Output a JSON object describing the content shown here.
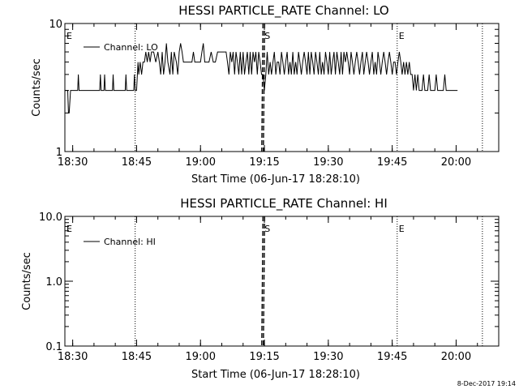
{
  "chart_data": [
    {
      "type": "line",
      "title": "HESSI PARTICLE_RATE Channel: LO",
      "xlabel": "Start Time (06-Jun-17 18:28:10)",
      "ylabel": "Counts/sec",
      "y_scale": "log",
      "ylim": [
        1,
        10
      ],
      "y_ticks": [
        "1",
        "10"
      ],
      "xlim": [
        "18:28:10",
        "20:10:00"
      ],
      "x_ticks": [
        "18:30",
        "18:45",
        "19:00",
        "19:15",
        "19:30",
        "19:45",
        "20:00"
      ],
      "legend": {
        "placement": "top-left",
        "entries": [
          "Channel: LO"
        ]
      },
      "markers": [
        {
          "label": "E",
          "time": "18:28:10",
          "style": "none"
        },
        {
          "label": "",
          "time": "18:44:40",
          "style": "dotted"
        },
        {
          "label": "S",
          "time": "19:14:40",
          "style": "dashed"
        },
        {
          "label": "E",
          "time": "19:46:10",
          "style": "dotted"
        },
        {
          "label": "",
          "time": "20:06:10",
          "style": "dotted"
        }
      ],
      "series": [
        {
          "name": "Channel: LO",
          "points": [
            [
              "18:28:10",
              3
            ],
            [
              "18:28:50",
              3
            ],
            [
              "18:29:00",
              2
            ],
            [
              "18:29:10",
              2
            ],
            [
              "18:29:30",
              3
            ],
            [
              "18:30:10",
              3
            ],
            [
              "18:30:20",
              3
            ],
            [
              "18:31:00",
              3
            ],
            [
              "18:31:10",
              3
            ],
            [
              "18:31:20",
              4
            ],
            [
              "18:31:30",
              3
            ],
            [
              "18:32:10",
              3
            ],
            [
              "18:32:30",
              3
            ],
            [
              "18:32:50",
              3
            ],
            [
              "18:36:20",
              3
            ],
            [
              "18:36:30",
              4
            ],
            [
              "18:36:40",
              3
            ],
            [
              "18:37:20",
              3
            ],
            [
              "18:37:30",
              4
            ],
            [
              "18:37:40",
              3
            ],
            [
              "18:39:20",
              3
            ],
            [
              "18:39:30",
              4
            ],
            [
              "18:39:40",
              3
            ],
            [
              "18:42:20",
              3
            ],
            [
              "18:42:30",
              4
            ],
            [
              "18:42:40",
              3
            ],
            [
              "18:44:20",
              3
            ],
            [
              "18:44:30",
              4
            ],
            [
              "18:44:40",
              3
            ],
            [
              "18:45:00",
              3
            ],
            [
              "18:45:20",
              5
            ],
            [
              "18:45:30",
              4
            ],
            [
              "18:45:50",
              5
            ],
            [
              "18:46:10",
              4
            ],
            [
              "18:46:30",
              5
            ],
            [
              "18:46:50",
              5
            ],
            [
              "18:47:10",
              6
            ],
            [
              "18:47:30",
              5
            ],
            [
              "18:47:50",
              6
            ],
            [
              "18:48:10",
              5
            ],
            [
              "18:48:30",
              6
            ],
            [
              "18:49:00",
              6
            ],
            [
              "18:49:30",
              5
            ],
            [
              "18:50:00",
              6
            ],
            [
              "18:50:20",
              5
            ],
            [
              "18:50:40",
              4
            ],
            [
              "18:51:00",
              6
            ],
            [
              "18:51:20",
              4
            ],
            [
              "18:51:40",
              5
            ],
            [
              "18:52:00",
              7
            ],
            [
              "18:52:20",
              5
            ],
            [
              "18:52:50",
              4
            ],
            [
              "18:53:10",
              6
            ],
            [
              "18:53:30",
              4
            ],
            [
              "18:53:50",
              6
            ],
            [
              "18:54:20",
              5
            ],
            [
              "18:54:40",
              4
            ],
            [
              "18:55:00",
              6
            ],
            [
              "18:55:20",
              7
            ],
            [
              "18:55:40",
              6
            ],
            [
              "18:56:00",
              5
            ],
            [
              "18:58:00",
              5
            ],
            [
              "18:58:20",
              6
            ],
            [
              "18:58:40",
              5
            ],
            [
              "19:00:00",
              5
            ],
            [
              "19:00:20",
              6
            ],
            [
              "19:00:40",
              7
            ],
            [
              "19:01:00",
              5
            ],
            [
              "19:02:00",
              5
            ],
            [
              "19:02:30",
              6
            ],
            [
              "19:03:00",
              5
            ],
            [
              "19:03:30",
              5
            ],
            [
              "19:04:00",
              6
            ],
            [
              "19:06:00",
              6
            ],
            [
              "19:06:20",
              5
            ],
            [
              "19:06:40",
              4
            ],
            [
              "19:07:00",
              6
            ],
            [
              "19:07:20",
              5
            ],
            [
              "19:07:40",
              6
            ],
            [
              "19:08:00",
              4
            ],
            [
              "19:08:20",
              6
            ],
            [
              "19:08:40",
              5
            ],
            [
              "19:09:00",
              4
            ],
            [
              "19:09:20",
              6
            ],
            [
              "19:09:40",
              4
            ],
            [
              "19:10:00",
              6
            ],
            [
              "19:10:20",
              4
            ],
            [
              "19:10:40",
              5
            ],
            [
              "19:11:00",
              6
            ],
            [
              "19:11:20",
              4
            ],
            [
              "19:11:40",
              6
            ],
            [
              "19:12:00",
              4
            ],
            [
              "19:12:20",
              6
            ],
            [
              "19:12:40",
              5
            ],
            [
              "19:13:00",
              6
            ],
            [
              "19:13:20",
              4
            ],
            [
              "19:13:40",
              6
            ],
            [
              "19:14:00",
              5
            ],
            [
              "19:14:20",
              4
            ],
            [
              "19:14:40",
              4
            ],
            [
              "19:15:00",
              3
            ],
            [
              "19:15:20",
              4
            ],
            [
              "19:15:40",
              6
            ],
            [
              "19:16:00",
              4
            ],
            [
              "19:16:20",
              5
            ],
            [
              "19:16:40",
              4
            ],
            [
              "19:17:00",
              5
            ],
            [
              "19:17:20",
              6
            ],
            [
              "19:17:40",
              4
            ],
            [
              "19:18:00",
              5
            ],
            [
              "19:18:20",
              5
            ],
            [
              "19:18:40",
              4
            ],
            [
              "19:19:00",
              6
            ],
            [
              "19:19:20",
              5
            ],
            [
              "19:19:40",
              4
            ],
            [
              "19:20:00",
              5
            ],
            [
              "19:20:20",
              6
            ],
            [
              "19:20:40",
              4
            ],
            [
              "19:21:00",
              5
            ],
            [
              "19:21:20",
              4
            ],
            [
              "19:21:40",
              6
            ],
            [
              "19:22:00",
              4
            ],
            [
              "19:22:20",
              5
            ],
            [
              "19:22:40",
              4
            ],
            [
              "19:23:00",
              6
            ],
            [
              "19:23:20",
              5
            ],
            [
              "19:23:40",
              4
            ],
            [
              "19:24:00",
              5
            ],
            [
              "19:24:20",
              6
            ],
            [
              "19:24:40",
              5
            ],
            [
              "19:25:00",
              4
            ],
            [
              "19:25:20",
              6
            ],
            [
              "19:25:40",
              4
            ],
            [
              "19:26:00",
              6
            ],
            [
              "19:26:20",
              5
            ],
            [
              "19:26:40",
              4
            ],
            [
              "19:27:00",
              6
            ],
            [
              "19:27:20",
              5
            ],
            [
              "19:27:40",
              4
            ],
            [
              "19:28:00",
              6
            ],
            [
              "19:28:20",
              4
            ],
            [
              "19:28:40",
              5
            ],
            [
              "19:29:00",
              4
            ],
            [
              "19:29:20",
              6
            ],
            [
              "19:29:40",
              5
            ],
            [
              "19:30:00",
              4
            ],
            [
              "19:30:20",
              6
            ],
            [
              "19:30:40",
              4
            ],
            [
              "19:31:00",
              5
            ],
            [
              "19:31:20",
              6
            ],
            [
              "19:31:40",
              4
            ],
            [
              "19:32:00",
              6
            ],
            [
              "19:32:20",
              5
            ],
            [
              "19:32:40",
              4
            ],
            [
              "19:33:00",
              6
            ],
            [
              "19:33:20",
              4
            ],
            [
              "19:33:40",
              6
            ],
            [
              "19:34:00",
              5
            ],
            [
              "19:34:20",
              6
            ],
            [
              "19:34:40",
              5
            ],
            [
              "19:35:00",
              4
            ],
            [
              "19:35:20",
              6
            ],
            [
              "19:35:40",
              5
            ],
            [
              "19:36:00",
              4
            ],
            [
              "19:36:20",
              5
            ],
            [
              "19:36:40",
              6
            ],
            [
              "19:37:00",
              5
            ],
            [
              "19:37:20",
              4
            ],
            [
              "19:37:40",
              5
            ],
            [
              "19:38:00",
              6
            ],
            [
              "19:38:20",
              4
            ],
            [
              "19:38:40",
              5
            ],
            [
              "19:39:00",
              6
            ],
            [
              "19:39:20",
              5
            ],
            [
              "19:39:40",
              4
            ],
            [
              "19:40:00",
              5
            ],
            [
              "19:40:20",
              6
            ],
            [
              "19:40:40",
              4
            ],
            [
              "19:41:00",
              5
            ],
            [
              "19:41:20",
              4
            ],
            [
              "19:41:40",
              6
            ],
            [
              "19:42:00",
              5
            ],
            [
              "19:42:20",
              4
            ],
            [
              "19:42:40",
              5
            ],
            [
              "19:43:00",
              6
            ],
            [
              "19:43:20",
              5
            ],
            [
              "19:43:40",
              4
            ],
            [
              "19:44:00",
              5
            ],
            [
              "19:44:20",
              6
            ],
            [
              "19:44:40",
              5
            ],
            [
              "19:45:00",
              4
            ],
            [
              "19:45:20",
              5
            ],
            [
              "19:45:40",
              5
            ],
            [
              "19:46:00",
              4
            ],
            [
              "19:46:20",
              5
            ],
            [
              "19:46:40",
              6
            ],
            [
              "19:47:00",
              5
            ],
            [
              "19:47:20",
              4
            ],
            [
              "19:47:40",
              5
            ],
            [
              "19:48:00",
              4
            ],
            [
              "19:48:20",
              5
            ],
            [
              "19:48:40",
              4
            ],
            [
              "19:49:00",
              5
            ],
            [
              "19:49:20",
              4
            ],
            [
              "19:49:40",
              4
            ],
            [
              "19:50:00",
              3
            ],
            [
              "19:50:20",
              4
            ],
            [
              "19:50:40",
              3
            ],
            [
              "19:51:00",
              4
            ],
            [
              "19:51:20",
              3
            ],
            [
              "19:52:00",
              3
            ],
            [
              "19:52:20",
              4
            ],
            [
              "19:52:40",
              3
            ],
            [
              "19:53:20",
              3
            ],
            [
              "19:53:40",
              4
            ],
            [
              "19:54:00",
              3
            ],
            [
              "19:55:00",
              3
            ],
            [
              "19:55:20",
              4
            ],
            [
              "19:55:40",
              3
            ],
            [
              "19:57:00",
              3
            ],
            [
              "19:57:20",
              4
            ],
            [
              "19:57:40",
              3
            ],
            [
              "20:00:00",
              3
            ],
            [
              "20:00:20",
              3
            ]
          ]
        }
      ]
    },
    {
      "type": "line",
      "title": "HESSI PARTICLE_RATE Channel: HI",
      "xlabel": "Start Time (06-Jun-17 18:28:10)",
      "ylabel": "Counts/sec",
      "y_scale": "log",
      "ylim": [
        0.1,
        10
      ],
      "y_ticks": [
        "0.1",
        "1.0",
        "10.0"
      ],
      "xlim": [
        "18:28:10",
        "20:10:00"
      ],
      "x_ticks": [
        "18:30",
        "18:45",
        "19:00",
        "19:15",
        "19:30",
        "19:45",
        "20:00"
      ],
      "legend": {
        "placement": "top-left",
        "entries": [
          "Channel: HI"
        ]
      },
      "markers": [
        {
          "label": "E",
          "time": "18:28:10",
          "style": "none"
        },
        {
          "label": "",
          "time": "18:44:40",
          "style": "dotted"
        },
        {
          "label": "S",
          "time": "19:14:40",
          "style": "dashed"
        },
        {
          "label": "E",
          "time": "19:46:10",
          "style": "dotted"
        },
        {
          "label": "",
          "time": "20:06:10",
          "style": "dotted"
        }
      ],
      "series": [
        {
          "name": "Channel: HI",
          "points": []
        }
      ]
    }
  ],
  "footer": {
    "timestamp": "8-Dec-2017 19:14"
  }
}
